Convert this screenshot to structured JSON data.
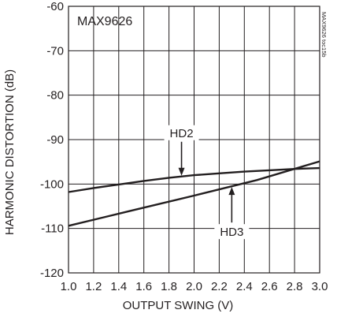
{
  "chart_data": {
    "type": "line",
    "part_label": "MAX9626",
    "figure_code": "MAX9626 toc15b",
    "xlabel": "OUTPUT SWING (V)",
    "ylabel": "HARMONIC DISTORTION (dB)",
    "xlim": [
      1.0,
      3.0
    ],
    "ylim": [
      -120,
      -60
    ],
    "x_ticks": [
      "1.0",
      "1.2",
      "1.4",
      "1.6",
      "1.8",
      "2.0",
      "2.2",
      "2.4",
      "2.6",
      "2.8",
      "3.0"
    ],
    "y_ticks": [
      "-60",
      "-70",
      "-80",
      "-90",
      "-100",
      "-110",
      "-120"
    ],
    "grid": true,
    "series": [
      {
        "name": "HD2",
        "x": [
          1.0,
          1.2,
          1.4,
          1.6,
          1.8,
          2.0,
          2.2,
          2.4,
          2.6,
          2.8,
          3.0
        ],
        "y": [
          -101.8,
          -100.9,
          -100.1,
          -99.3,
          -98.6,
          -98.0,
          -97.6,
          -97.2,
          -96.9,
          -96.6,
          -96.4
        ]
      },
      {
        "name": "HD3",
        "x": [
          1.0,
          1.5,
          2.0,
          2.5,
          3.0
        ],
        "y": [
          -109.4,
          -106.0,
          -102.6,
          -99.1,
          -94.9
        ]
      }
    ],
    "annotations": [
      {
        "text": "HD2",
        "series": "HD2",
        "x": 1.9
      },
      {
        "text": "HD3",
        "series": "HD3",
        "x": 2.3
      }
    ]
  }
}
